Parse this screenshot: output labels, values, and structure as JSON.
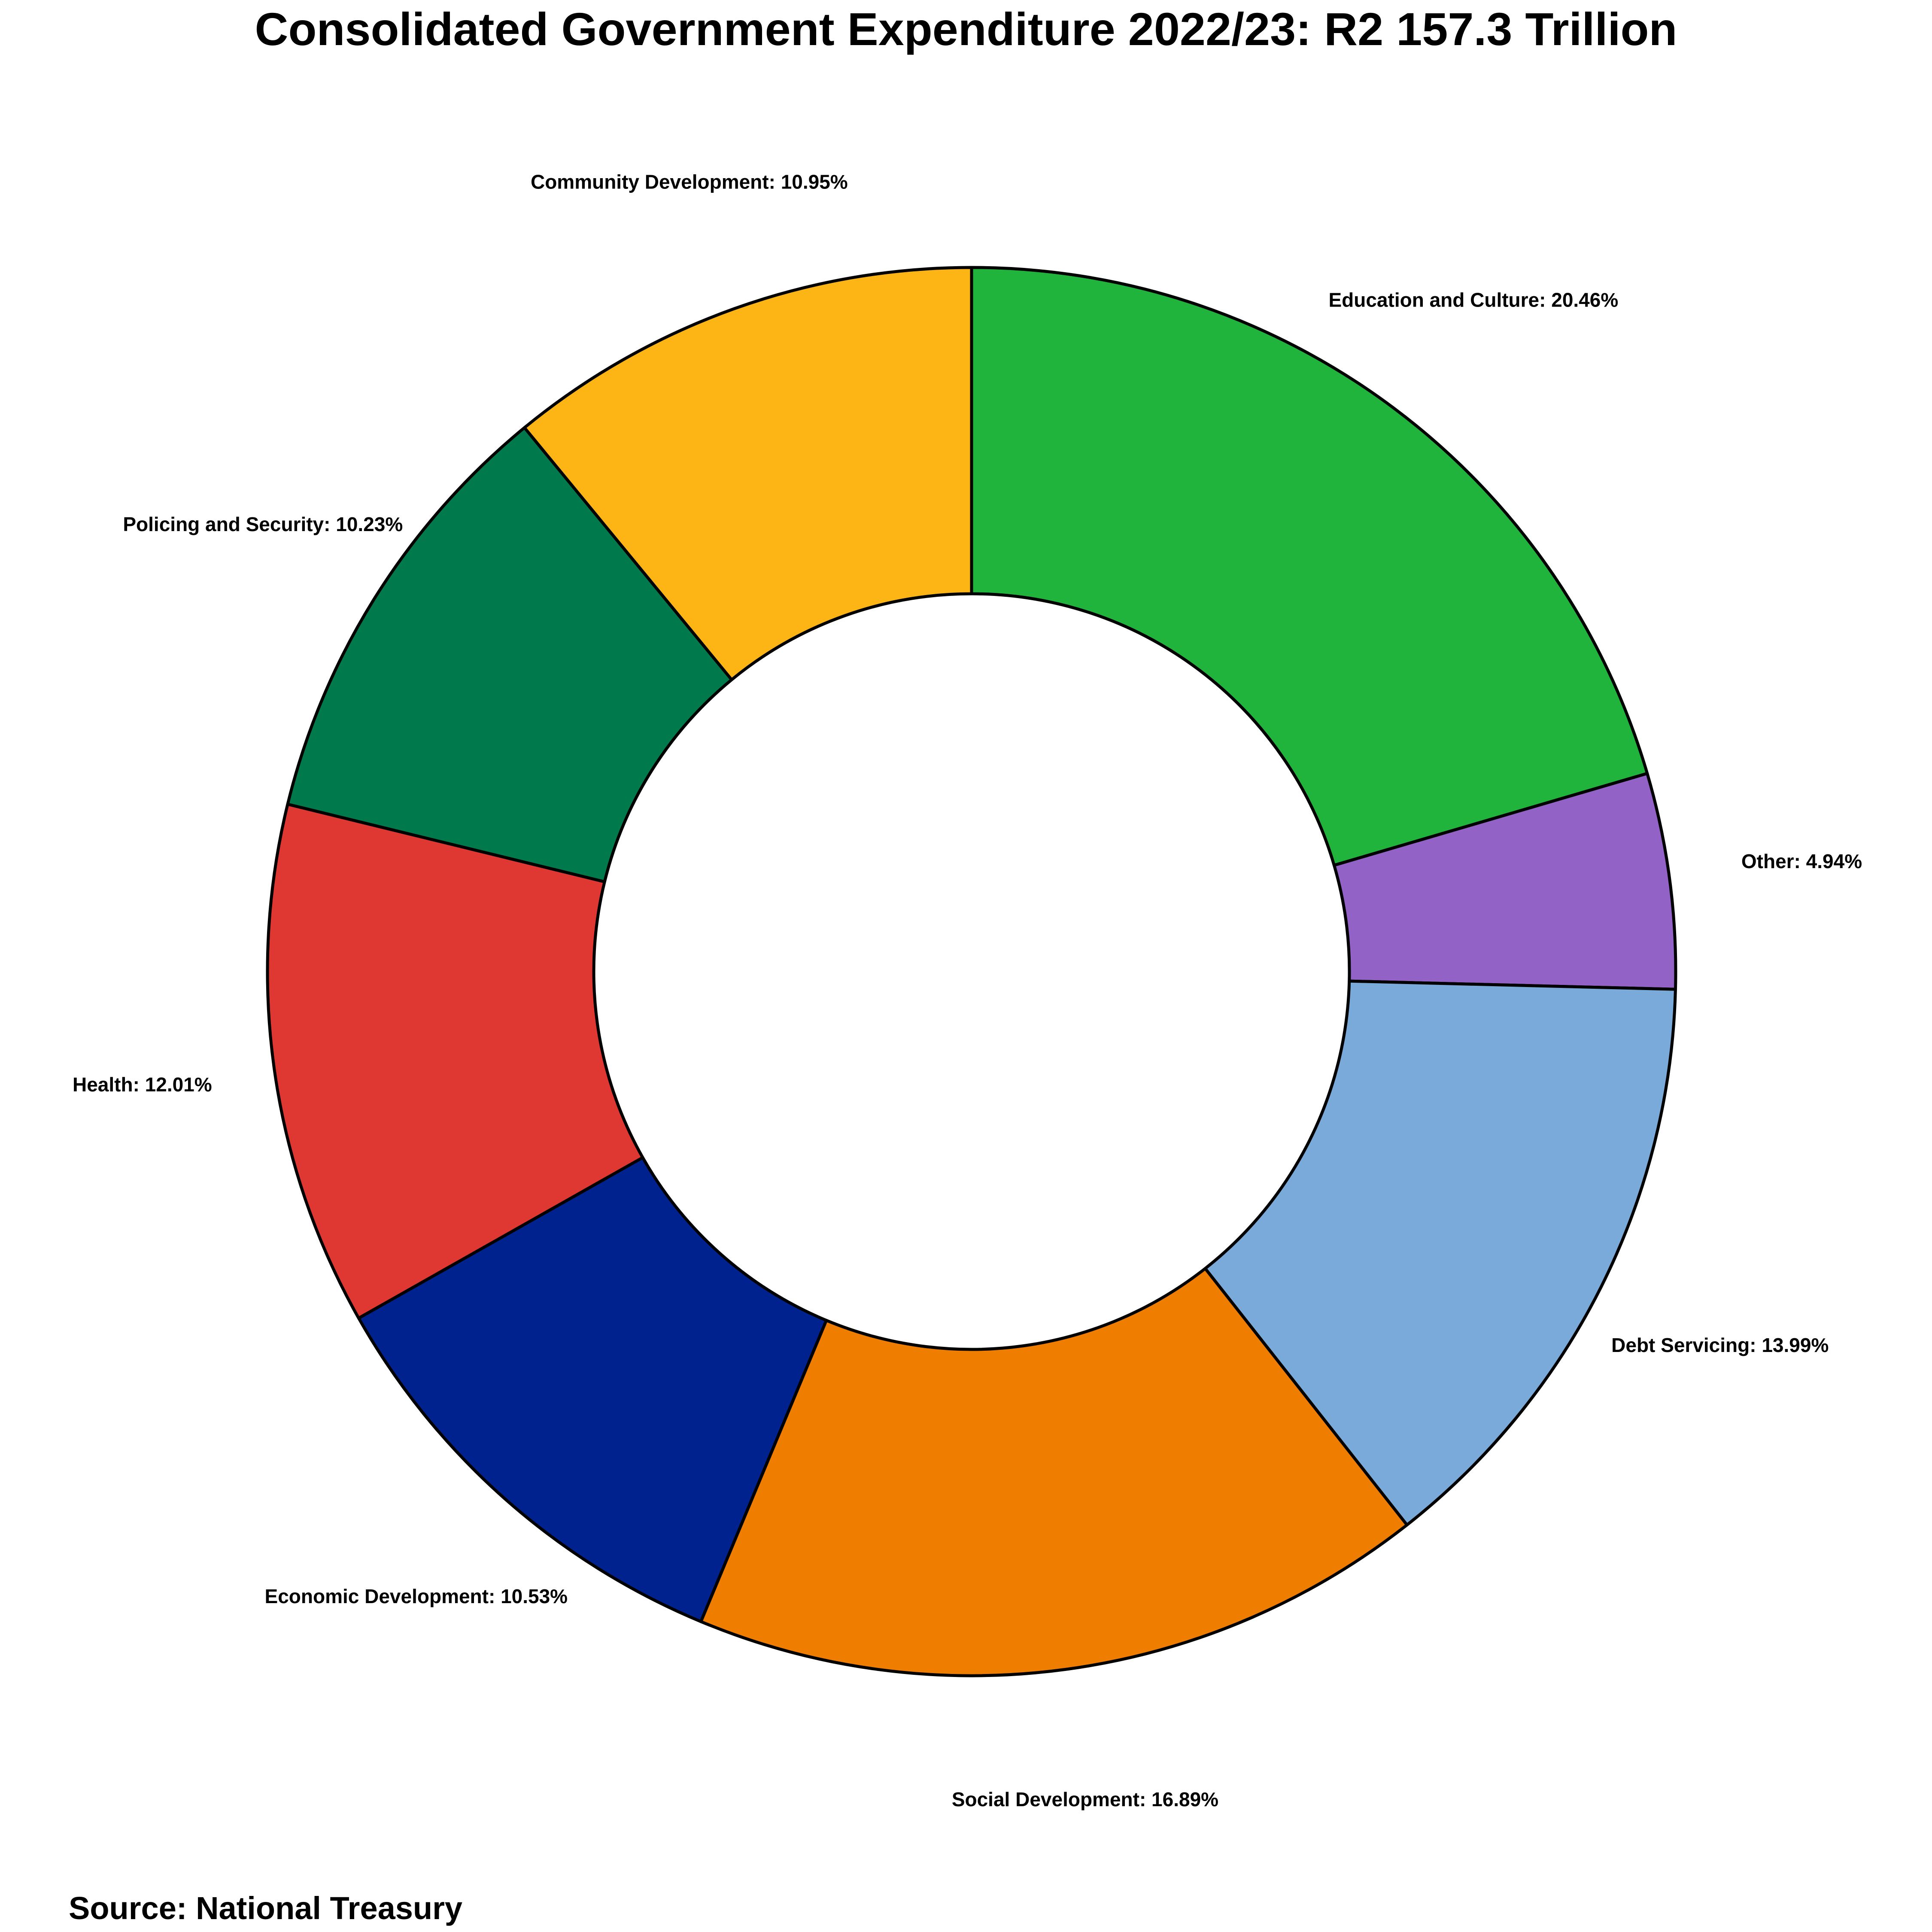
{
  "chart_data": {
    "type": "pie",
    "variant": "donut",
    "title": "Consolidated Government Expenditure 2022/23: R2 157.3 Trillion",
    "source": "Source: National Treasury",
    "start": "top, clockwise",
    "slices": [
      {
        "label": "Education and Culture",
        "value": 20.46,
        "text": "Education and Culture: 20.46%",
        "color": "#21b43c"
      },
      {
        "label": "Other",
        "value": 4.94,
        "text": "Other: 4.94%",
        "color": "#9262c6"
      },
      {
        "label": "Debt Servicing",
        "value": 13.99,
        "text": "Debt Servicing: 13.99%",
        "color": "#79aad9"
      },
      {
        "label": "Social Development",
        "value": 16.89,
        "text": "Social Development: 16.89%",
        "color": "#ef7d00"
      },
      {
        "label": "Economic Development",
        "value": 10.53,
        "text": "Economic Development: 10.53%",
        "color": "#00228f"
      },
      {
        "label": "Health",
        "value": 12.01,
        "text": "Health: 12.01%",
        "color": "#df3732"
      },
      {
        "label": "Policing and Security",
        "value": 10.23,
        "text": "Policing and Security: 10.23%",
        "color": "#007a4d"
      },
      {
        "label": "Community Development",
        "value": 10.95,
        "text": "Community Development: 10.95%",
        "color": "#fdb515"
      }
    ]
  }
}
